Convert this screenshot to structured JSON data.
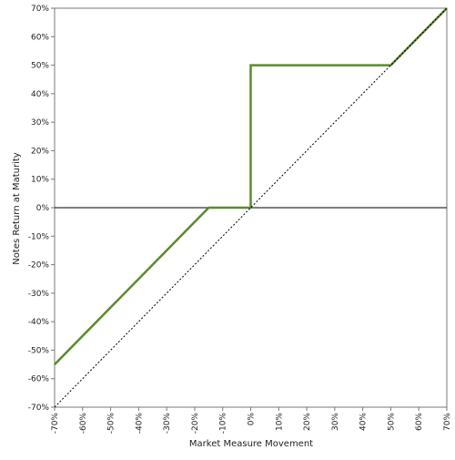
{
  "chart_data": {
    "type": "line",
    "title": "",
    "xlabel": "Market Measure Movement",
    "ylabel": "Notes Return at Maturity",
    "xlim": [
      -70,
      70
    ],
    "ylim": [
      -70,
      70
    ],
    "x_ticks": [
      -70,
      -60,
      -50,
      -40,
      -30,
      -20,
      -10,
      0,
      10,
      20,
      30,
      40,
      50,
      60,
      70
    ],
    "y_ticks": [
      -70,
      -60,
      -50,
      -40,
      -30,
      -20,
      -10,
      0,
      10,
      20,
      30,
      40,
      50,
      60,
      70
    ],
    "x_tick_labels": [
      "-70%",
      "-60%",
      "-50%",
      "-40%",
      "-30%",
      "-20%",
      "-10%",
      "0%",
      "10%",
      "20%",
      "30%",
      "40%",
      "50%",
      "60%",
      "70%"
    ],
    "y_tick_labels": [
      "-70%",
      "-60%",
      "-50%",
      "-40%",
      "-30%",
      "-20%",
      "-10%",
      "0%",
      "10%",
      "20%",
      "30%",
      "40%",
      "50%",
      "60%",
      "70%"
    ],
    "grid": false,
    "series": [
      {
        "style": "solid",
        "color": "#5b8a2e",
        "x": [
          -70,
          -15,
          0,
          0,
          50,
          70
        ],
        "y": [
          -55,
          0,
          0,
          50,
          50,
          70
        ]
      },
      {
        "style": "dotted",
        "color": "#000000",
        "x": [
          -70,
          70
        ],
        "y": [
          -70,
          70
        ]
      }
    ],
    "reference_lines": [
      {
        "axis": "y",
        "value": 0,
        "color": "#000000"
      }
    ]
  }
}
